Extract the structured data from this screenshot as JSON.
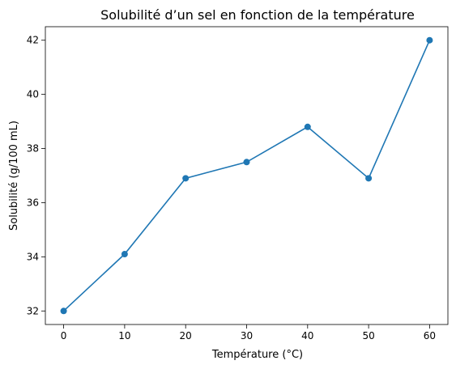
{
  "chart_data": {
    "type": "line",
    "title": "Solubilité d’un sel en fonction de la température",
    "xlabel": "Température (°C)",
    "ylabel": "Solubilité (g/100 mL)",
    "x": [
      0,
      10,
      20,
      30,
      40,
      50,
      60
    ],
    "series": [
      {
        "values": [
          32.0,
          34.1,
          36.9,
          37.5,
          38.8,
          36.9,
          42.0
        ],
        "color": "#1f77b4",
        "marker": "circle"
      }
    ],
    "xlim": [
      -3,
      63
    ],
    "ylim": [
      31.5,
      42.5
    ],
    "xticks": [
      0,
      10,
      20,
      30,
      40,
      50,
      60
    ],
    "yticks": [
      32,
      34,
      36,
      38,
      40,
      42
    ],
    "grid": false,
    "legend": false
  }
}
